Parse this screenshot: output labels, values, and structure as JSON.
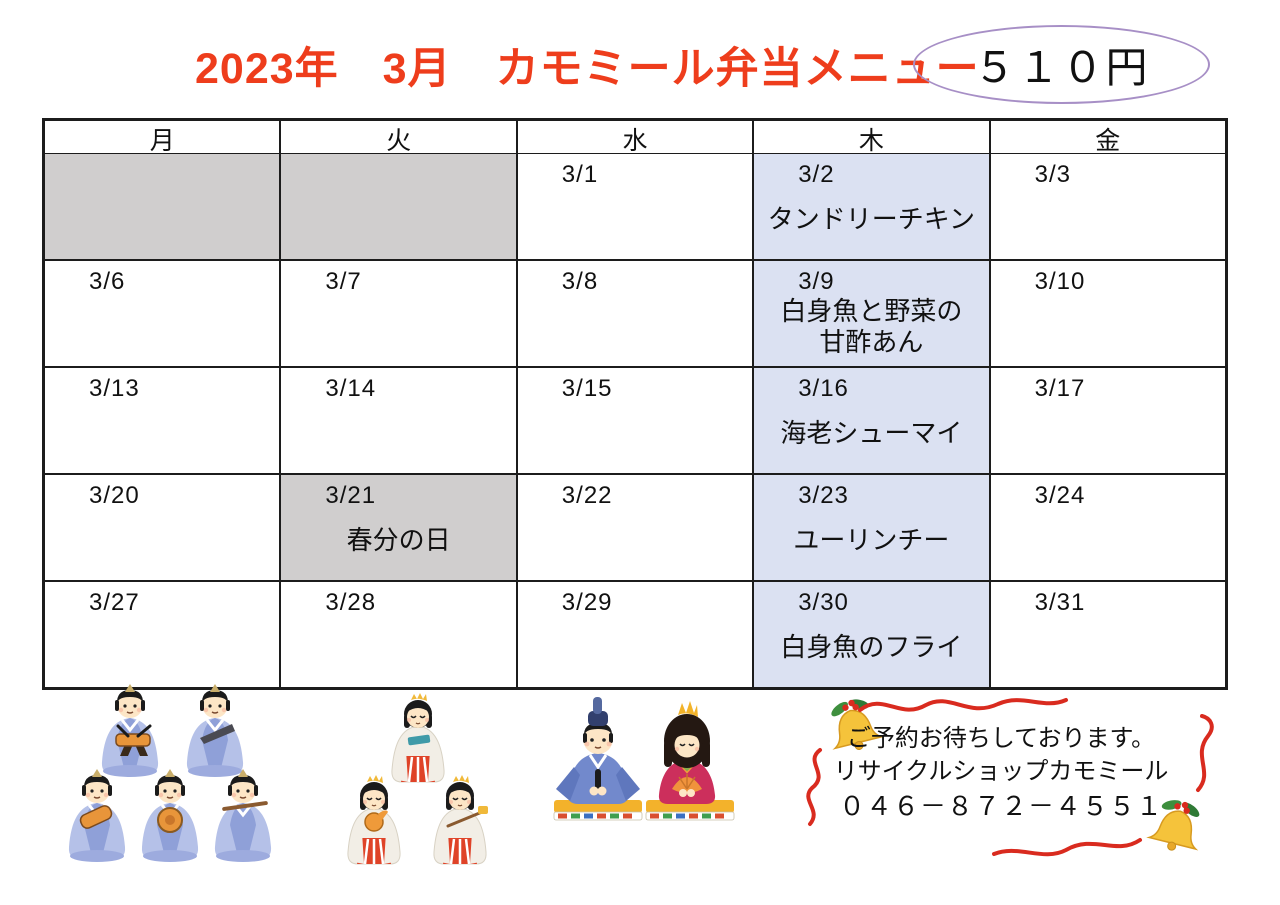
{
  "title": "2023年　3月　カモミール弁当メニュー",
  "price_badge": "５１０円",
  "calendar": {
    "day_headers": [
      "月",
      "火",
      "水",
      "木",
      "金"
    ],
    "rows": [
      [
        {
          "date": "",
          "bg": "gray"
        },
        {
          "date": "",
          "bg": "gray"
        },
        {
          "date": "3/1"
        },
        {
          "date": "3/2",
          "menu": [
            "タンドリーチキン"
          ],
          "bg": "blue"
        },
        {
          "date": "3/3"
        }
      ],
      [
        {
          "date": "3/6"
        },
        {
          "date": "3/7"
        },
        {
          "date": "3/8"
        },
        {
          "date": "3/9",
          "menu": [
            "白身魚と野菜の",
            "甘酢あん"
          ],
          "bg": "blue"
        },
        {
          "date": "3/10"
        }
      ],
      [
        {
          "date": "3/13"
        },
        {
          "date": "3/14"
        },
        {
          "date": "3/15"
        },
        {
          "date": "3/16",
          "menu": [
            "海老シューマイ"
          ],
          "bg": "blue"
        },
        {
          "date": "3/17"
        }
      ],
      [
        {
          "date": "3/20"
        },
        {
          "date": "3/21",
          "menu": [
            "春分の日"
          ],
          "bg": "gray"
        },
        {
          "date": "3/22"
        },
        {
          "date": "3/23",
          "menu": [
            "ユーリンチー"
          ],
          "bg": "blue"
        },
        {
          "date": "3/24"
        }
      ],
      [
        {
          "date": "3/27"
        },
        {
          "date": "3/28"
        },
        {
          "date": "3/29"
        },
        {
          "date": "3/30",
          "menu": [
            "白身魚のフライ"
          ],
          "bg": "blue"
        },
        {
          "date": "3/31"
        }
      ]
    ]
  },
  "footer": {
    "line1": "ご予約お待ちしております。",
    "line2": "リサイクルショップカモミール",
    "phone": "０４６－８７２－４５５１"
  },
  "illustrations": [
    "five-court-musicians-dolls",
    "three-court-ladies-dolls",
    "emperor-and-empress-dolls",
    "bell-and-ribbon-decoration"
  ],
  "colors": {
    "title_red": "#ee3d1c",
    "thursday_highlight_blue": "#dbe1f2",
    "holiday_gray": "#d0cece",
    "oval_border_purple": "#a78fc6",
    "ribbon_red": "#d92b1f"
  }
}
